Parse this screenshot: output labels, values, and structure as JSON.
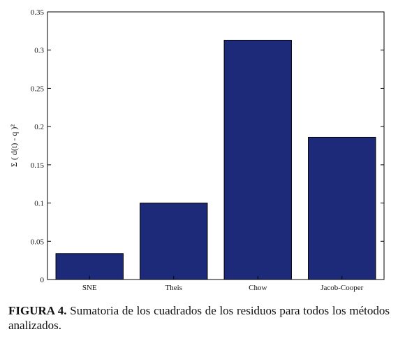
{
  "chart_data": {
    "type": "bar",
    "categories": [
      "SNE",
      "Theis",
      "Chow",
      "Jacob-Cooper"
    ],
    "values": [
      0.034,
      0.1,
      0.313,
      0.186
    ],
    "ylabel": "Σ ( d(t) - q )²",
    "ylim": [
      0,
      0.35
    ],
    "yticks": [
      0,
      0.05,
      0.1,
      0.15,
      0.2,
      0.25,
      0.3,
      0.35
    ],
    "ytick_labels": [
      "0",
      "0.05",
      "0.1",
      "0.15",
      "0.2",
      "0.25",
      "0.3",
      "0.35"
    ],
    "bar_color": "#1d2a7a",
    "grid": false
  },
  "caption": {
    "label": "FIGURA 4.",
    "text": " Sumatoria de los cuadrados de los residuos para todos los métodos analizados."
  }
}
